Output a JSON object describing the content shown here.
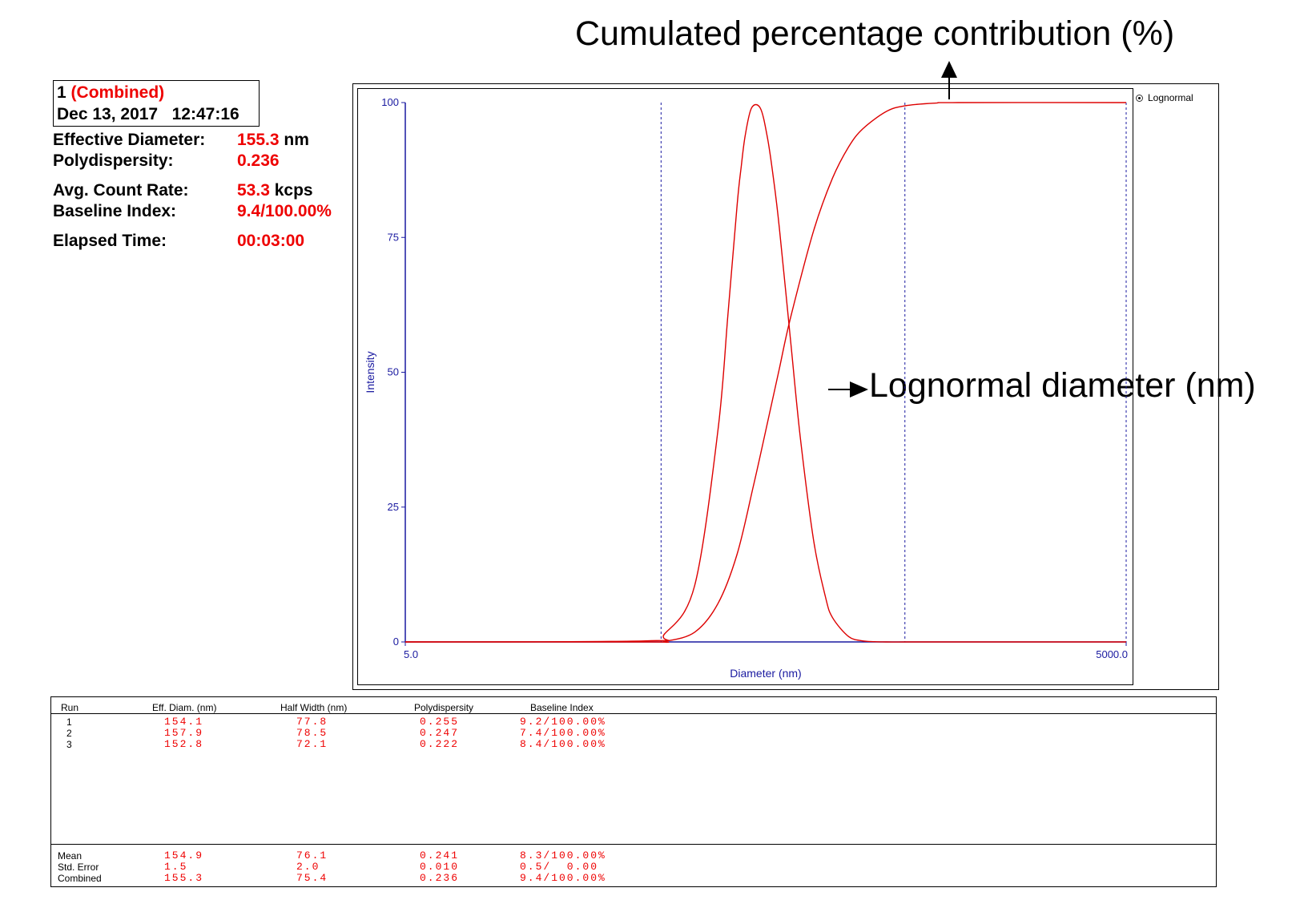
{
  "annotations": {
    "top": "Cumulated percentage contribution (%)",
    "right": "Lognormal diameter (nm)"
  },
  "info": {
    "run_number": "1",
    "run_label": "(Combined)",
    "date": "Dec 13, 2017",
    "time": "12:47:16"
  },
  "properties": [
    {
      "label": "Effective Diameter:",
      "value": "155.3",
      "unit": " nm"
    },
    {
      "label": "Polydispersity:",
      "value": "0.236",
      "unit": ""
    },
    {
      "label": "Avg. Count Rate:",
      "value": "53.3",
      "unit": " kcps"
    },
    {
      "label": "Baseline Index:",
      "value": "9.4/100.00%",
      "unit": ""
    },
    {
      "label": "Elapsed Time:",
      "value": "00:03:00",
      "unit": ""
    }
  ],
  "legend": {
    "label": "Lognormal"
  },
  "chart_data": {
    "type": "line",
    "x_scale": "log",
    "xlabel": "Diameter (nm)",
    "ylabel": "Intensity",
    "xlim": [
      5.0,
      5000.0
    ],
    "ylim": [
      0,
      100
    ],
    "x_tick_labels": [
      "5.0",
      "5000.0"
    ],
    "y_ticks": [
      0,
      25,
      50,
      75,
      100
    ],
    "legend": "top-right",
    "grid": false,
    "dashed_markers_x": [
      58,
      600,
      5000
    ],
    "series": [
      {
        "name": "Lognormal",
        "color": "#dd0000",
        "x": [
          5,
          50,
          60,
          80,
          100,
          110,
          120,
          125,
          130,
          138,
          150,
          160,
          170,
          180,
          200,
          220,
          250,
          280,
          300,
          350,
          400,
          450,
          500,
          600,
          700,
          800,
          900,
          1000,
          5000
        ],
        "y": [
          0,
          0.2,
          1.5,
          10.4,
          39.2,
          60.5,
          80.7,
          88.1,
          94.0,
          99.0,
          99.0,
          94.0,
          86.2,
          76.9,
          56.5,
          38.1,
          18.9,
          8.4,
          4.5,
          1.0,
          0.2,
          0.05,
          0,
          0,
          0,
          0,
          0,
          0,
          0
        ]
      },
      {
        "color": "#dd0000",
        "x": [
          5,
          50,
          60,
          80,
          100,
          120,
          140,
          160,
          180,
          200,
          250,
          300,
          350,
          400,
          500,
          600,
          800,
          1000,
          5000
        ],
        "y": [
          0,
          0,
          0.1,
          1.8,
          7.1,
          16.2,
          28.6,
          40.2,
          50.6,
          59.9,
          76.2,
          86.0,
          91.8,
          95.1,
          98.3,
          99.4,
          99.9,
          100,
          100
        ]
      }
    ]
  },
  "table": {
    "headers": [
      "Run",
      "Eff. Diam. (nm)",
      "Half Width (nm)",
      "Polydispersity",
      "Baseline Index"
    ],
    "rows": [
      [
        "1",
        "154.1",
        "77.8",
        "0.255",
        "9.2/100.00%"
      ],
      [
        "2",
        "157.9",
        "78.5",
        "0.247",
        "7.4/100.00%"
      ],
      [
        "3",
        "152.8",
        "72.1",
        "0.222",
        "8.4/100.00%"
      ]
    ],
    "summary": [
      [
        "Mean",
        "154.9",
        "76.1",
        "0.241",
        "8.3/100.00%"
      ],
      [
        "Std. Error",
        "1.5",
        "2.0",
        "0.010",
        "0.5/  0.00"
      ],
      [
        "Combined",
        "155.3",
        "75.4",
        "0.236",
        "9.4/100.00%"
      ]
    ]
  }
}
